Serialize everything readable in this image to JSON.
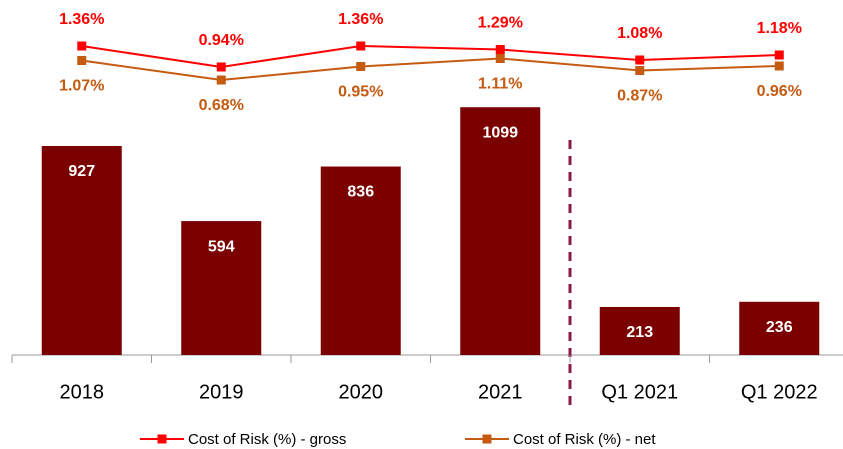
{
  "chart_data": {
    "type": "bar",
    "categories": [
      "2018",
      "2019",
      "2020",
      "2021",
      "Q1 2021",
      "Q1 2022"
    ],
    "ylim": [
      0,
      1100
    ],
    "y2lim": [
      0,
      2
    ],
    "series": [
      {
        "type": "bar",
        "color": "#7b0000",
        "values": [
          927,
          594,
          836,
          1099,
          213,
          236
        ]
      },
      {
        "type": "line",
        "name": "Cost of Risk (%) - gross",
        "color": "#ff0000",
        "axis": "y2",
        "values": [
          1.36,
          0.94,
          1.36,
          1.29,
          1.08,
          1.18
        ],
        "value_labels": [
          "1.36%",
          "0.94%",
          "1.36%",
          "1.29%",
          "1.08%",
          "1.18%"
        ]
      },
      {
        "type": "line",
        "name": "Cost of Risk (%) - net",
        "color": "#c55a11",
        "axis": "y2",
        "values": [
          1.07,
          0.68,
          0.95,
          1.11,
          0.87,
          0.96
        ],
        "value_labels": [
          "1.07%",
          "0.68%",
          "0.95%",
          "1.11%",
          "0.87%",
          "0.96%"
        ]
      }
    ]
  }
}
